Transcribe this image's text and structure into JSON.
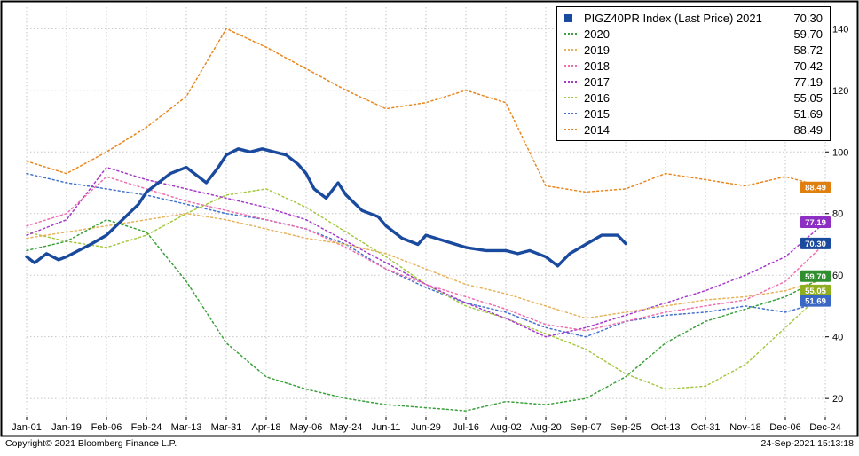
{
  "footer": {
    "copyright": "Copyright© 2021 Bloomberg Finance L.P.",
    "timestamp": "24-Sep-2021 15:13:18"
  },
  "chart_data": {
    "type": "line",
    "title": "PIGZ40PR Index (Last Price)",
    "categories": [
      "Jan-01",
      "Jan-19",
      "Feb-06",
      "Feb-24",
      "Mar-13",
      "Mar-31",
      "Apr-18",
      "May-06",
      "May-24",
      "Jun-11",
      "Jun-29",
      "Jul-16",
      "Aug-02",
      "Aug-20",
      "Sep-07",
      "Sep-25",
      "Oct-13",
      "Oct-31",
      "Nov-18",
      "Dec-06",
      "Dec-24"
    ],
    "ylim": [
      14,
      147
    ],
    "yticks": [
      20,
      40,
      60,
      80,
      100,
      120,
      140
    ],
    "grid": true,
    "legend_position": "top-right",
    "series": [
      {
        "name": "2021",
        "label": "PIGZ40PR Index (Last Price) 2021",
        "last_price": "70.30",
        "color": "#1a4a9e",
        "style": "solid",
        "x": [
          0,
          0.2,
          0.5,
          0.8,
          1,
          1.3,
          1.6,
          2,
          2.4,
          2.8,
          3,
          3.3,
          3.6,
          4,
          4.2,
          4.5,
          4.8,
          5,
          5.3,
          5.6,
          5.9,
          6.2,
          6.5,
          6.8,
          7,
          7.2,
          7.5,
          7.8,
          8,
          8.4,
          8.8,
          9,
          9.4,
          9.8,
          10,
          10.5,
          11,
          11.5,
          12,
          12.3,
          12.6,
          13,
          13.3,
          13.6,
          14,
          14.4,
          14.8,
          15
        ],
        "values": [
          66,
          64,
          67,
          65,
          66,
          68,
          70,
          73,
          78,
          83,
          87,
          90,
          93,
          95,
          93,
          90,
          95,
          99,
          101,
          100,
          101,
          100,
          99,
          96,
          93,
          88,
          85,
          90,
          86,
          81,
          79,
          76,
          72,
          70,
          73,
          71,
          69,
          68,
          68,
          67,
          68,
          66,
          63,
          67,
          70,
          73,
          73,
          70.3
        ]
      },
      {
        "name": "2020",
        "label": "2020",
        "last_price": "59.70",
        "color": "#3ba13b",
        "style": "dotted",
        "values": [
          68,
          71,
          78,
          74,
          58,
          38,
          27,
          23,
          20,
          18,
          17,
          16,
          19,
          18,
          20,
          27,
          38,
          45,
          49,
          53,
          59.7
        ]
      },
      {
        "name": "2019",
        "label": "2019",
        "last_price": "58.72",
        "color": "#e6b35a",
        "style": "dotted",
        "values": [
          72,
          74,
          76,
          78,
          80,
          78,
          75,
          72,
          70,
          67,
          62,
          57,
          54,
          50,
          46,
          48,
          50,
          52,
          53,
          55,
          58.72
        ]
      },
      {
        "name": "2018",
        "label": "2018",
        "last_price": "70.42",
        "color": "#ef6fae",
        "style": "dotted",
        "values": [
          76,
          80,
          92,
          88,
          84,
          81,
          78,
          75,
          69,
          62,
          57,
          53,
          49,
          44,
          42,
          45,
          48,
          50,
          52,
          58,
          70.42
        ]
      },
      {
        "name": "2017",
        "label": "2017",
        "last_price": "77.19",
        "color": "#a639c9",
        "style": "dotted",
        "values": [
          73,
          78,
          95,
          91,
          88,
          85,
          82,
          78,
          71,
          64,
          57,
          51,
          46,
          40,
          43,
          47,
          51,
          55,
          60,
          66,
          77.19
        ]
      },
      {
        "name": "2016",
        "label": "2016",
        "last_price": "55.05",
        "color": "#a5c843",
        "style": "dotted",
        "values": [
          74,
          71,
          69,
          73,
          80,
          86,
          88,
          82,
          74,
          66,
          57,
          50,
          46,
          41,
          36,
          28,
          23,
          24,
          31,
          43,
          55.05
        ]
      },
      {
        "name": "2015",
        "label": "2015",
        "last_price": "51.69",
        "color": "#4472cc",
        "style": "dotted",
        "values": [
          93,
          90,
          88,
          86,
          83,
          80,
          78,
          75,
          70,
          62,
          56,
          51,
          48,
          43,
          40,
          45,
          47,
          48,
          50,
          48,
          51.69
        ]
      },
      {
        "name": "2014",
        "label": "2014",
        "last_price": "88.49",
        "color": "#e8871e",
        "style": "dotted",
        "values": [
          97,
          93,
          100,
          108,
          118,
          140,
          134,
          127,
          120,
          114,
          116,
          120,
          116,
          89,
          87,
          88,
          93,
          91,
          89,
          92,
          88.49
        ]
      }
    ],
    "right_badges": [
      {
        "text": "88.49",
        "value": 88.49,
        "color": "#df7f10"
      },
      {
        "text": "77.19",
        "value": 77.19,
        "color": "#8d2fc2"
      },
      {
        "text": "70.30",
        "value": 70.3,
        "color": "#1a4a9e"
      },
      {
        "text": "59.70",
        "value": 59.7,
        "color": "#2f8f2f"
      },
      {
        "text": "55.05",
        "value": 55.05,
        "color": "#8fae1f"
      },
      {
        "text": "51.69",
        "value": 51.69,
        "color": "#3a66c4"
      }
    ]
  }
}
